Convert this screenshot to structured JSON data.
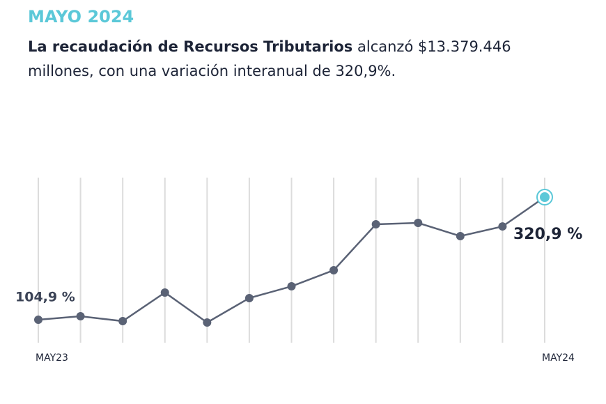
{
  "header": {
    "kicker": "MAYO 2024",
    "lead_bold": "La recaudación de Recursos Tributarios",
    "lead_rest": " alcanzó $13.379.446 millones, con una variación interanual de 320,9%."
  },
  "chart_data": {
    "type": "line",
    "categories": [
      "MAY23",
      null,
      null,
      null,
      null,
      null,
      null,
      null,
      null,
      null,
      null,
      null,
      "MAY24"
    ],
    "series": [
      {
        "color": "#5a6275",
        "values": [
          104.9,
          111.0,
          102.4,
          152.8,
          100.0,
          143.0,
          163.8,
          192.1,
          273.1,
          275.5,
          252.2,
          269.3,
          320.9
        ],
        "value_labels": [
          "104,9 %",
          null,
          null,
          null,
          null,
          null,
          null,
          null,
          null,
          null,
          null,
          null,
          "320,9 %"
        ]
      }
    ],
    "highlight_color": "#5bc8d8",
    "ylim": [
      64.4,
      355.3
    ],
    "grid": true
  }
}
